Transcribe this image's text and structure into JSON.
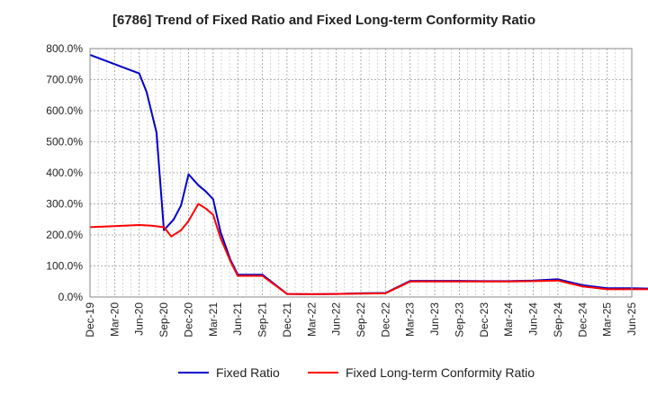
{
  "chart_data": {
    "type": "line",
    "title": "[6786]  Trend of Fixed Ratio and Fixed Long-term Conformity Ratio",
    "x_tick_labels": [
      "Dec-19",
      "Mar-20",
      "Jun-20",
      "Sep-20",
      "Dec-20",
      "Mar-21",
      "Jun-21",
      "Sep-21",
      "Dec-21",
      "Mar-22",
      "Jun-22",
      "Sep-22",
      "Dec-22",
      "Mar-23",
      "Jun-23",
      "Sep-23",
      "Dec-23",
      "Mar-24",
      "Jun-24",
      "Sep-24",
      "Dec-24",
      "Mar-25",
      "Jun-25"
    ],
    "y_tick_labels": [
      "0.0%",
      "100.0%",
      "200.0%",
      "300.0%",
      "400.0%",
      "500.0%",
      "600.0%",
      "700.0%",
      "800.0%"
    ],
    "ylim": [
      0,
      800
    ],
    "grid": true,
    "legend_position": "bottom",
    "series": [
      {
        "name": "Fixed Ratio",
        "color": "#0000cc",
        "points": [
          [
            0,
            780
          ],
          [
            1,
            750
          ],
          [
            2,
            720
          ],
          [
            2.3,
            660
          ],
          [
            2.7,
            530
          ],
          [
            3,
            215
          ],
          [
            3.4,
            250
          ],
          [
            3.7,
            295
          ],
          [
            4,
            395
          ],
          [
            4.4,
            360
          ],
          [
            4.7,
            340
          ],
          [
            5,
            315
          ],
          [
            5.3,
            210
          ],
          [
            5.7,
            120
          ],
          [
            6,
            72
          ],
          [
            7,
            72
          ],
          [
            8,
            10
          ],
          [
            9,
            9
          ],
          [
            10,
            10
          ],
          [
            11,
            12
          ],
          [
            12,
            13
          ],
          [
            13,
            52
          ],
          [
            14,
            52
          ],
          [
            15,
            52
          ],
          [
            16,
            51
          ],
          [
            17,
            51
          ],
          [
            18,
            53
          ],
          [
            19,
            57
          ],
          [
            20,
            38
          ],
          [
            21,
            28
          ],
          [
            22,
            28
          ],
          [
            23,
            27
          ]
        ]
      },
      {
        "name": "Fixed Long-term Conformity Ratio",
        "color": "#ff0000",
        "points": [
          [
            0,
            225
          ],
          [
            1,
            228
          ],
          [
            2,
            232
          ],
          [
            2.5,
            230
          ],
          [
            3,
            225
          ],
          [
            3.3,
            195
          ],
          [
            3.7,
            215
          ],
          [
            4,
            245
          ],
          [
            4.4,
            300
          ],
          [
            4.7,
            285
          ],
          [
            5,
            265
          ],
          [
            5.3,
            190
          ],
          [
            5.7,
            115
          ],
          [
            6,
            68
          ],
          [
            7,
            68
          ],
          [
            8,
            10
          ],
          [
            9,
            9
          ],
          [
            10,
            10
          ],
          [
            11,
            11
          ],
          [
            12,
            12
          ],
          [
            13,
            50
          ],
          [
            14,
            50
          ],
          [
            15,
            50
          ],
          [
            16,
            50
          ],
          [
            17,
            50
          ],
          [
            18,
            51
          ],
          [
            19,
            53
          ],
          [
            20,
            34
          ],
          [
            21,
            25
          ],
          [
            22,
            25
          ],
          [
            23,
            25
          ]
        ]
      }
    ]
  }
}
